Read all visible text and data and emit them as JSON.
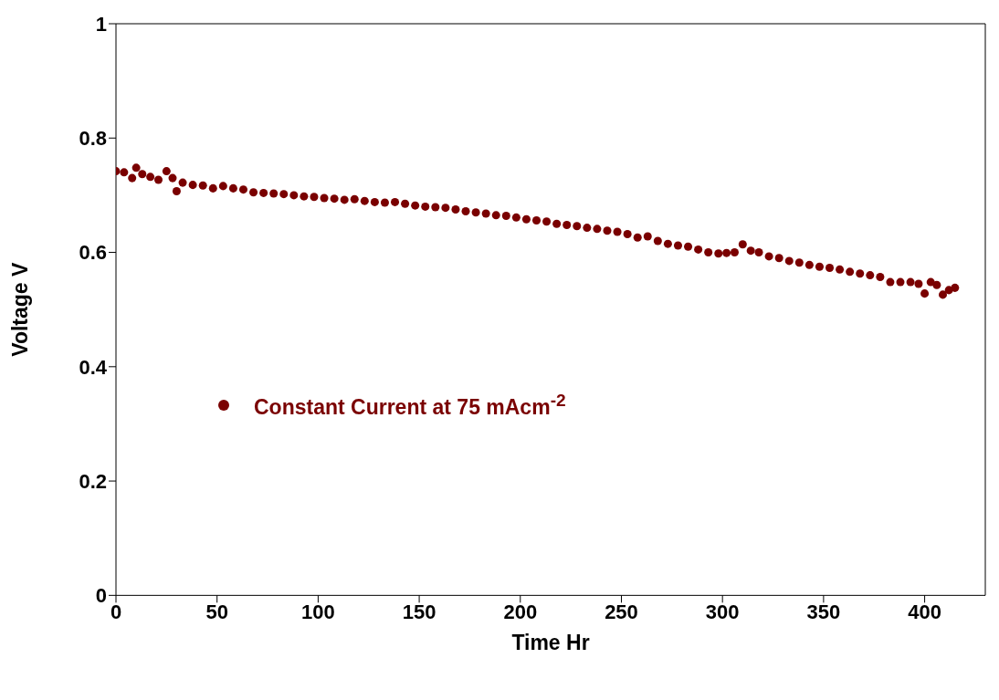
{
  "chart_data": {
    "type": "scatter",
    "xlabel": "Time Hr",
    "ylabel": "Voltage V",
    "x": [
      0,
      4,
      8,
      10,
      13,
      17,
      21,
      25,
      28,
      30,
      33,
      38,
      43,
      48,
      53,
      58,
      63,
      68,
      73,
      78,
      83,
      88,
      93,
      98,
      103,
      108,
      113,
      118,
      123,
      128,
      133,
      138,
      143,
      148,
      153,
      158,
      163,
      168,
      173,
      178,
      183,
      188,
      193,
      198,
      203,
      208,
      213,
      218,
      223,
      228,
      233,
      238,
      243,
      248,
      253,
      258,
      263,
      268,
      273,
      278,
      283,
      288,
      293,
      298,
      302,
      306,
      310,
      314,
      318,
      323,
      328,
      333,
      338,
      343,
      348,
      353,
      358,
      363,
      368,
      373,
      378,
      383,
      388,
      393,
      397,
      400,
      403,
      406,
      409,
      412,
      415
    ],
    "series": [
      {
        "name": "Constant Current at 75 mAcm$^{-2}$",
        "color": "#7a0000",
        "values": [
          0.742,
          0.74,
          0.73,
          0.748,
          0.737,
          0.732,
          0.727,
          0.742,
          0.73,
          0.707,
          0.722,
          0.718,
          0.717,
          0.712,
          0.716,
          0.712,
          0.71,
          0.705,
          0.704,
          0.703,
          0.702,
          0.7,
          0.698,
          0.697,
          0.695,
          0.694,
          0.692,
          0.693,
          0.69,
          0.688,
          0.687,
          0.688,
          0.685,
          0.682,
          0.68,
          0.679,
          0.678,
          0.675,
          0.672,
          0.67,
          0.668,
          0.665,
          0.664,
          0.661,
          0.658,
          0.656,
          0.654,
          0.65,
          0.648,
          0.646,
          0.643,
          0.641,
          0.638,
          0.636,
          0.632,
          0.626,
          0.628,
          0.62,
          0.615,
          0.612,
          0.61,
          0.605,
          0.6,
          0.598,
          0.599,
          0.6,
          0.614,
          0.603,
          0.6,
          0.593,
          0.59,
          0.585,
          0.582,
          0.578,
          0.575,
          0.573,
          0.57,
          0.566,
          0.563,
          0.56,
          0.557,
          0.548,
          0.548,
          0.548,
          0.545,
          0.528,
          0.548,
          0.543,
          0.526,
          0.534,
          0.538
        ]
      }
    ],
    "xlim": [
      0,
      430
    ],
    "xticks": [
      0,
      50,
      100,
      150,
      200,
      250,
      300,
      350,
      400
    ],
    "ylim": [
      0,
      1
    ],
    "yticks": [
      0,
      0.2,
      0.4,
      0.6,
      0.8,
      1
    ],
    "grid": false,
    "legend": "left",
    "marker": "circle"
  }
}
